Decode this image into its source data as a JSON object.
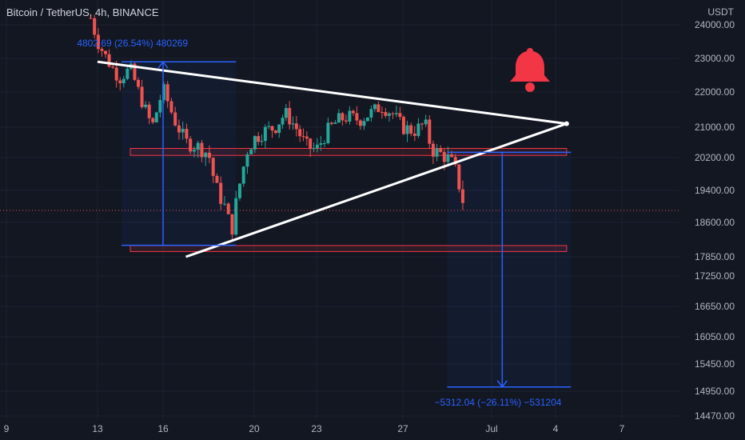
{
  "header": {
    "title": "Bitcoin / TetherUS, 4h, BINANCE"
  },
  "price_axis": {
    "unit_label": "USDT",
    "ticks": [
      "24000.00",
      "23000.00",
      "22000.00",
      "21000.00",
      "20200.00",
      "19400.00",
      "18600.00",
      "17850.00",
      "17250.00",
      "16650.00",
      "16050.00",
      "15450.00",
      "14950.00",
      "14470.00"
    ]
  },
  "time_axis": {
    "ticks": [
      "9",
      "13",
      "16",
      "20",
      "23",
      "27",
      "Jul",
      "4",
      "7"
    ]
  },
  "annotations": {
    "upper_measure": "4802.69 (26.54%) 480269",
    "lower_measure": "−5312.04 (−26.11%) −531204"
  },
  "colors": {
    "background": "#131722",
    "up_candle": "#26a69a",
    "down_candle": "#ef5350",
    "measure_blue": "#2962ff",
    "zone_red": "#f23645",
    "trendline": "#ffffff",
    "bell": "#f23645"
  },
  "icons": {
    "alert": "bell-icon"
  },
  "chart_data": {
    "type": "candlestick",
    "title": "Bitcoin / TetherUS, 4h, BINANCE",
    "xlabel": "",
    "ylabel": "USDT",
    "ylim": [
      14300,
      24300
    ],
    "x_tick_labels": [
      "9",
      "13",
      "16",
      "20",
      "23",
      "27",
      "Jul",
      "4",
      "7"
    ],
    "y_tick_labels": [
      "24000.00",
      "23000.00",
      "22000.00",
      "21000.00",
      "20200.00",
      "19400.00",
      "18600.00",
      "17850.00",
      "17250.00",
      "16650.00",
      "16050.00",
      "15450.00",
      "14950.00",
      "14470.00"
    ],
    "last_price": 18900,
    "close_path": [
      {
        "day": 12.7,
        "close": 24200
      },
      {
        "day": 13.0,
        "close": 23500
      },
      {
        "day": 13.5,
        "close": 22900
      },
      {
        "day": 14.0,
        "close": 22400
      },
      {
        "day": 14.5,
        "close": 22700
      },
      {
        "day": 15.0,
        "close": 21800
      },
      {
        "day": 15.5,
        "close": 21000
      },
      {
        "day": 16.0,
        "close": 22100
      },
      {
        "day": 16.5,
        "close": 21200
      },
      {
        "day": 17.0,
        "close": 20600
      },
      {
        "day": 17.5,
        "close": 20500
      },
      {
        "day": 18.0,
        "close": 20300
      },
      {
        "day": 18.3,
        "close": 19500
      },
      {
        "day": 18.7,
        "close": 19000
      },
      {
        "day": 19.0,
        "close": 18400
      },
      {
        "day": 19.3,
        "close": 19400
      },
      {
        "day": 19.7,
        "close": 20400
      },
      {
        "day": 20.0,
        "close": 20700
      },
      {
        "day": 20.5,
        "close": 20900
      },
      {
        "day": 21.0,
        "close": 21000
      },
      {
        "day": 21.5,
        "close": 21400
      },
      {
        "day": 22.0,
        "close": 21000
      },
      {
        "day": 22.5,
        "close": 20500
      },
      {
        "day": 23.0,
        "close": 20400
      },
      {
        "day": 23.5,
        "close": 20900
      },
      {
        "day": 24.0,
        "close": 21200
      },
      {
        "day": 24.5,
        "close": 21300
      },
      {
        "day": 25.0,
        "close": 21200
      },
      {
        "day": 25.5,
        "close": 21400
      },
      {
        "day": 26.0,
        "close": 21600
      },
      {
        "day": 26.5,
        "close": 21400
      },
      {
        "day": 27.0,
        "close": 21000
      },
      {
        "day": 27.5,
        "close": 20900
      },
      {
        "day": 28.0,
        "close": 21100
      },
      {
        "day": 28.3,
        "close": 20400
      },
      {
        "day": 28.7,
        "close": 20300
      },
      {
        "day": 29.0,
        "close": 20200
      },
      {
        "day": 29.3,
        "close": 20000
      },
      {
        "day": 29.6,
        "close": 19400
      },
      {
        "day": 29.8,
        "close": 18900
      }
    ],
    "triangle": {
      "upper_line": [
        {
          "day": 13.0,
          "price": 22900
        },
        {
          "day": 34.5,
          "price": 21100
        }
      ],
      "lower_line": [
        {
          "day": 17.0,
          "price": 17850
        },
        {
          "day": 34.5,
          "price": 21100
        }
      ]
    },
    "zones": [
      {
        "from_day": 14.5,
        "to_day": 34.5,
        "low": 20300,
        "high": 20400
      },
      {
        "from_day": 14.5,
        "to_day": 34.5,
        "low": 18000,
        "high": 18060
      }
    ],
    "measures": [
      {
        "from_day": 14.1,
        "to_day": 19.2,
        "from_price": 18100,
        "to_price": 22900,
        "label": "4802.69 (26.54%) 480269"
      },
      {
        "from_day": 29.0,
        "to_day": 34.7,
        "from_price": 20340,
        "to_price": 15028,
        "label": "−5312.04 (−26.11%) −531204"
      }
    ]
  }
}
